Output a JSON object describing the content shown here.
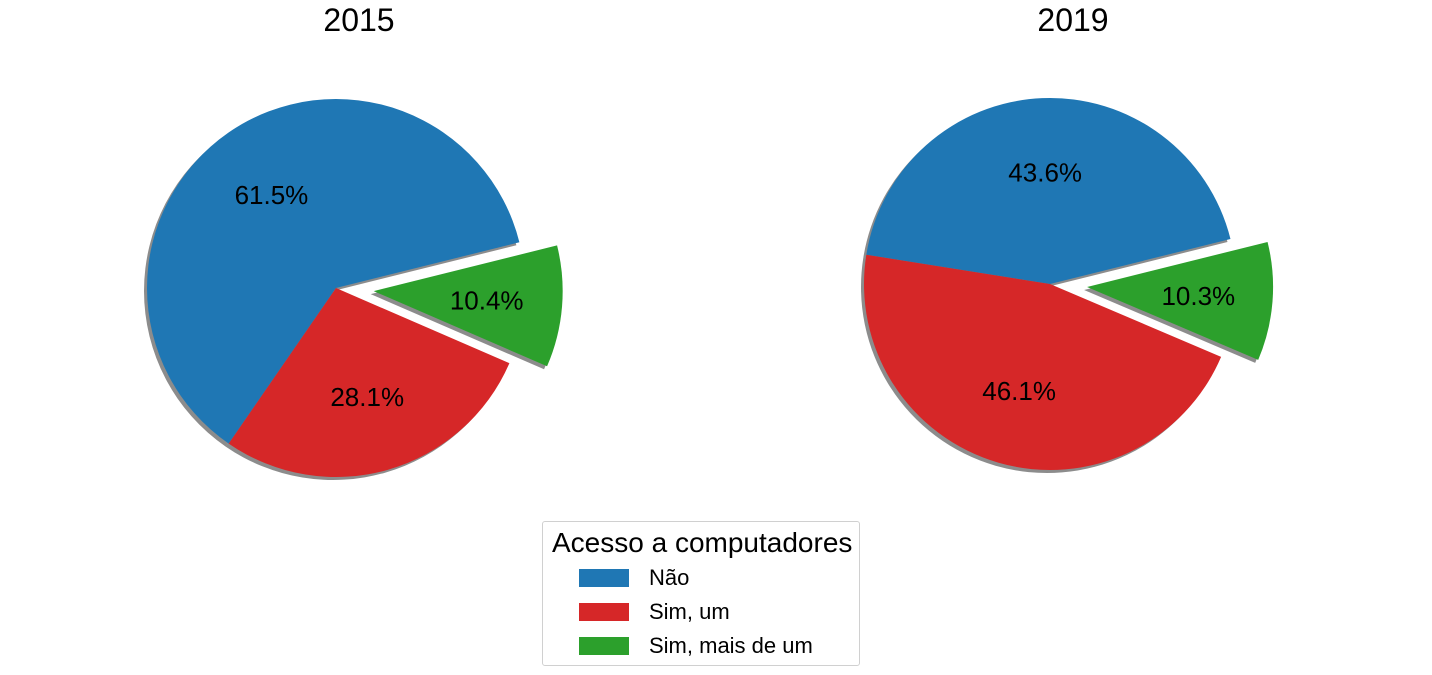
{
  "chart_data": [
    {
      "type": "pie",
      "title": "2015",
      "categories": [
        "Não",
        "Sim, um",
        "Sim, mais de um"
      ],
      "values": [
        61.5,
        28.1,
        10.4
      ],
      "labels": [
        "61.5%",
        "28.1%",
        "10.4%"
      ],
      "exploded": [
        false,
        false,
        true
      ],
      "shadow": true
    },
    {
      "type": "pie",
      "title": "2019",
      "categories": [
        "Não",
        "Sim, um",
        "Sim, mais de um"
      ],
      "values": [
        43.6,
        46.1,
        10.3
      ],
      "labels": [
        "43.6%",
        "46.1%",
        "10.3%"
      ],
      "exploded": [
        false,
        false,
        true
      ],
      "shadow": true
    }
  ],
  "legend": {
    "title": "Acesso a computadores",
    "placement": "bottom-center",
    "items": [
      {
        "label": "Não",
        "color": "#1f77b4"
      },
      {
        "label": "Sim, um",
        "color": "#d62728"
      },
      {
        "label": "Sim, mais de um",
        "color": "#2ca02c"
      }
    ]
  },
  "colors": [
    "#1f77b4",
    "#d62728",
    "#2ca02c"
  ]
}
